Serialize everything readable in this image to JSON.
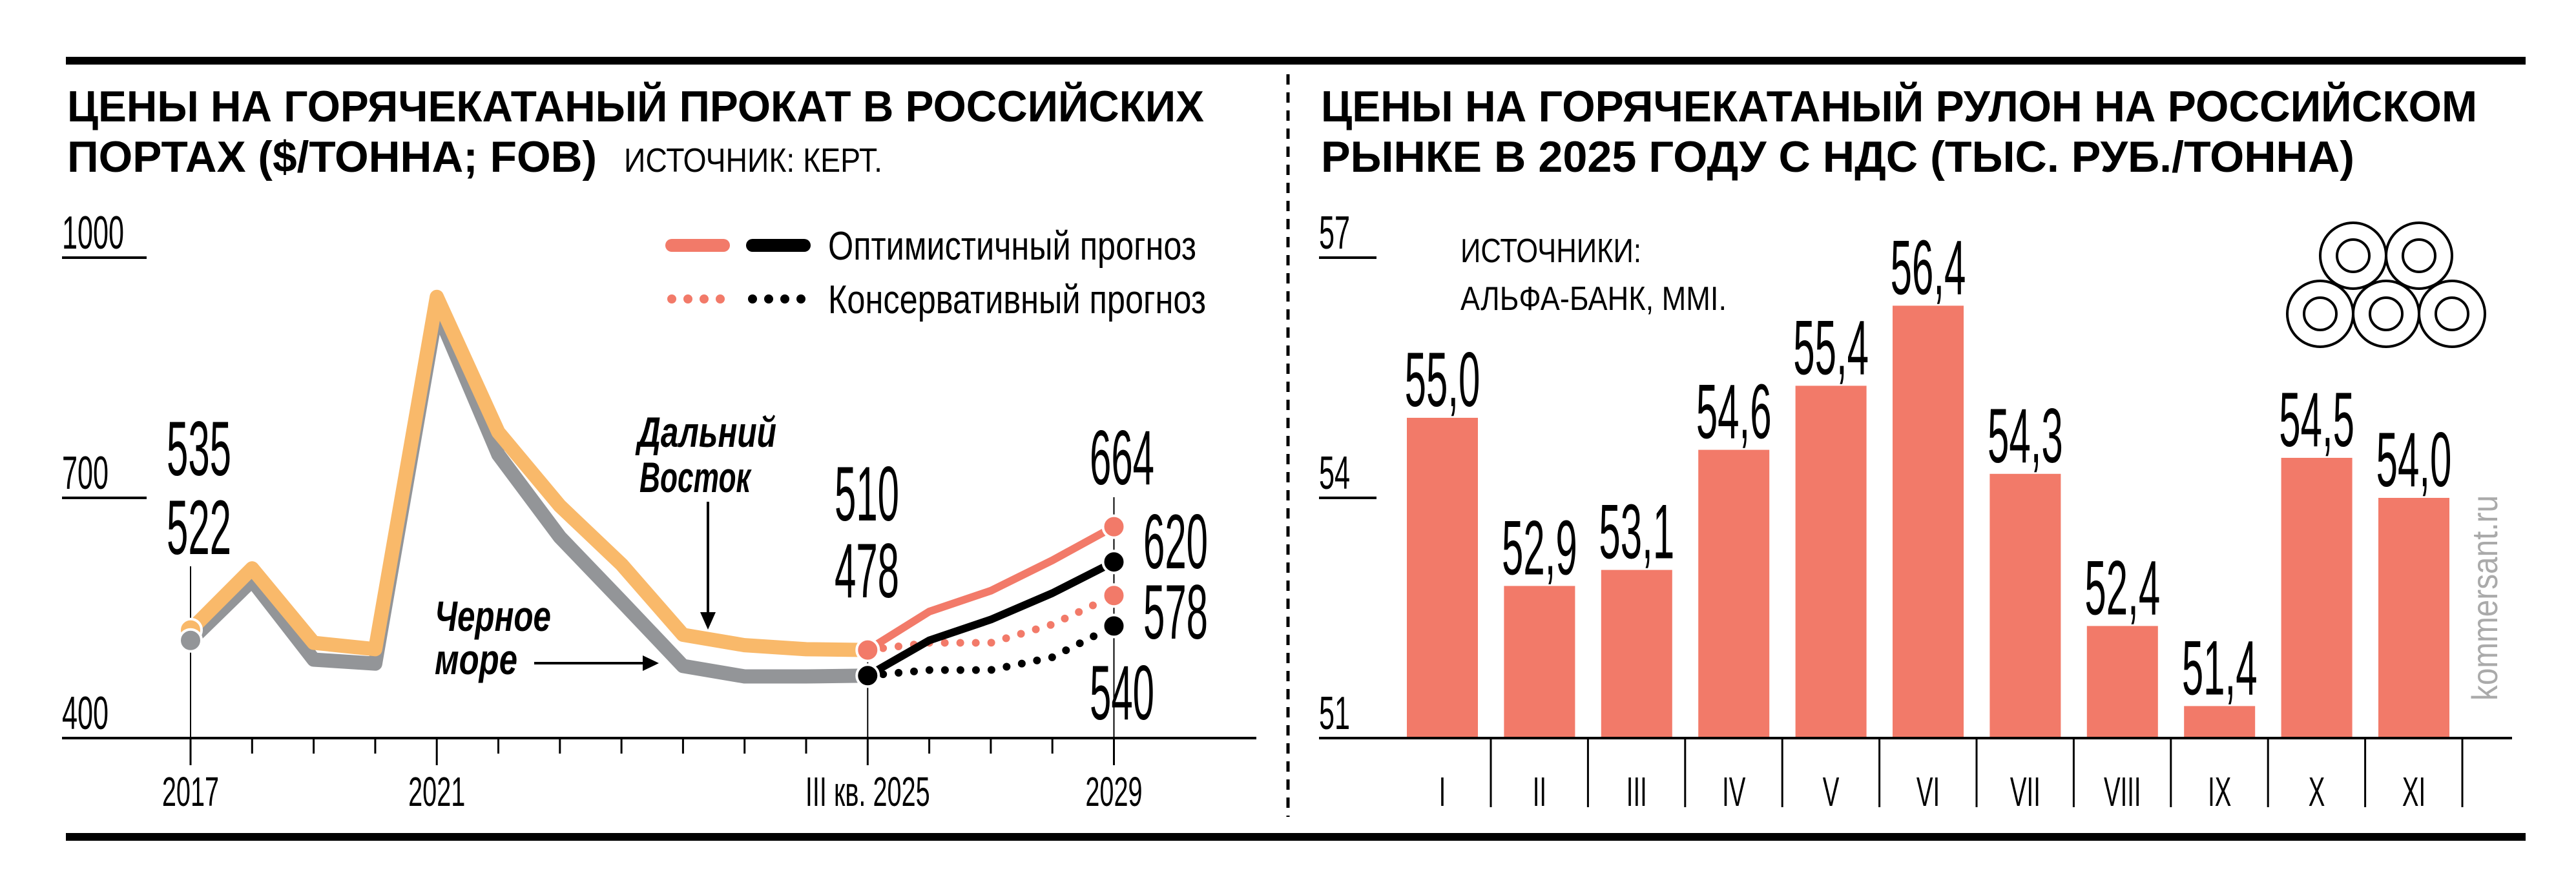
{
  "colors": {
    "orange": "#f9b96a",
    "gray": "#939598",
    "salmon": "#f27a69",
    "black": "#000000"
  },
  "chart_data": [
    {
      "type": "line",
      "title_line1": "ЦЕНЫ НА ГОРЯЧЕКАТАНЫЙ ПРОКАТ В РОССИЙСКИХ",
      "title_line2": "ПОРТАХ ($/ТОННА; FOB)",
      "source": "ИСТОЧНИК: КЕРТ.",
      "ylim": [
        400,
        1000
      ],
      "yticks": [
        "1000",
        "700",
        "400"
      ],
      "x_labels": [
        {
          "index": 0,
          "label": "2017"
        },
        {
          "index": 4,
          "label": "2021"
        },
        {
          "index": 11,
          "label": "III кв. 2025"
        },
        {
          "index": 15,
          "label": "2029"
        }
      ],
      "legend": {
        "optimistic": "Оптимистичный прогноз",
        "conservative": "Консервативный прогноз"
      },
      "annotations": {
        "far_east_1": "Дальний",
        "far_east_2": "Восток",
        "black_sea_1": "Черное",
        "black_sea_2": "море"
      },
      "series": [
        {
          "name": "Дальний Восток",
          "x": [
            0,
            1,
            2,
            3,
            4,
            5,
            6,
            7,
            8,
            9,
            10,
            11
          ],
          "values": [
            535,
            612,
            519,
            511,
            951,
            782,
            690,
            617,
            529,
            516,
            511,
            510
          ]
        },
        {
          "name": "Черное море",
          "x": [
            0,
            1,
            2,
            3,
            4,
            5,
            6,
            7,
            8,
            9,
            10,
            11
          ],
          "values": [
            522,
            597,
            498,
            493,
            935,
            754,
            651,
            571,
            490,
            477,
            477,
            478
          ]
        },
        {
          "name": "Дальний Восток — оптимистичный прогноз",
          "x": [
            11,
            12,
            13,
            14,
            15
          ],
          "values": [
            510,
            558,
            584,
            622,
            664
          ]
        },
        {
          "name": "Черное море — оптимистичный прогноз",
          "x": [
            11,
            12,
            13,
            14,
            15
          ],
          "values": [
            478,
            522,
            548,
            581,
            620
          ]
        },
        {
          "name": "Дальний Восток — консервативный прогноз",
          "x": [
            11,
            12,
            13,
            14,
            15
          ],
          "values": [
            510,
            519,
            519,
            542,
            578
          ]
        },
        {
          "name": "Черное море — консервативный прогноз",
          "x": [
            11,
            12,
            13,
            14,
            15
          ],
          "values": [
            478,
            485,
            485,
            501,
            540
          ]
        }
      ],
      "data_labels": [
        "535",
        "522",
        "510",
        "478",
        "664",
        "620",
        "578",
        "540"
      ]
    },
    {
      "type": "bar",
      "title_line1": "ЦЕНЫ НА ГОРЯЧЕКАТАНЫЙ РУЛОН НА РОССИЙСКОМ",
      "title_line2": "РЫНКЕ В 2025 ГОДУ С НДС (ТЫС. РУБ./ТОННА)",
      "source_line1": "ИСТОЧНИКИ:",
      "source_line2": "АЛЬФА-БАНК, MMI.",
      "ylim": [
        51,
        57
      ],
      "yticks": [
        "57",
        "54",
        "51"
      ],
      "categories": [
        "I",
        "II",
        "III",
        "IV",
        "V",
        "VI",
        "VII",
        "VIII",
        "IX",
        "X",
        "XI"
      ],
      "values": [
        55.0,
        52.9,
        53.1,
        54.6,
        55.4,
        56.4,
        54.3,
        52.4,
        51.4,
        54.5,
        54.0
      ],
      "value_labels": [
        "55,0",
        "52,9",
        "53,1",
        "54,6",
        "55,4",
        "56,4",
        "54,3",
        "52,4",
        "51,4",
        "54,5",
        "54,0"
      ]
    }
  ],
  "watermark": "kommersant.ru"
}
